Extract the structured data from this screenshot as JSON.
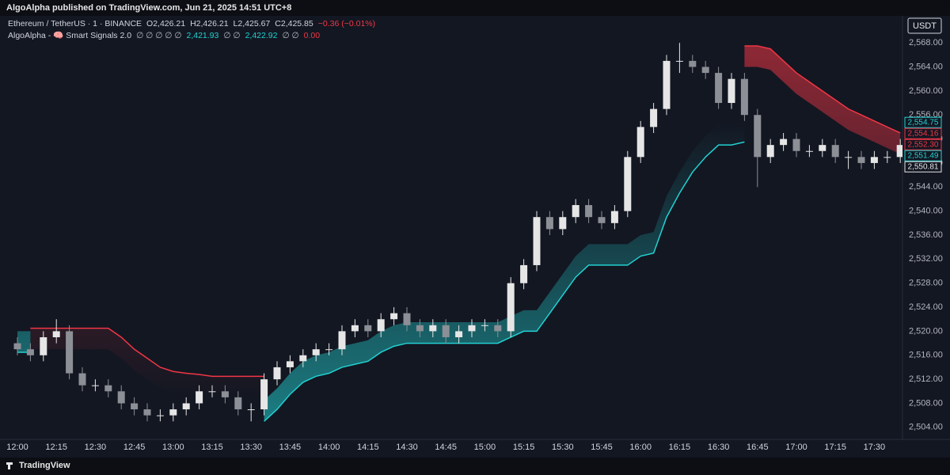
{
  "header": {
    "publisher": "AlgoAlpha published on TradingView.com, Jun 21, 2025 14:51 UTC+8",
    "brand": "TradingView"
  },
  "legend": {
    "symbol": "Ethereum / TetherUS · 1 · BINANCE",
    "ohlc": [
      "O2,426.21",
      "H2,426.21",
      "L2,425.67",
      "C2,425.85",
      "−0.36 (−0.01%)"
    ],
    "indicator": "AlgoAlpha - 🧠 Smart Signals 2.0",
    "indicator_values": [
      {
        "text": "∅ ∅ ∅ ∅ ∅",
        "color": "#b2b5be"
      },
      {
        "text": "2,421.93",
        "color": "#22d1d1"
      },
      {
        "text": "∅ ∅",
        "color": "#b2b5be"
      },
      {
        "text": "2,422.92",
        "color": "#22d1d1"
      },
      {
        "text": "∅ ∅",
        "color": "#b2b5be"
      },
      {
        "text": "0.00",
        "color": "#f23645"
      }
    ]
  },
  "chart_data": {
    "type": "candlestick",
    "currency": "USDT",
    "x": [
      "12:00",
      "12:05",
      "12:10",
      "12:15",
      "12:20",
      "12:25",
      "12:30",
      "12:35",
      "12:40",
      "12:45",
      "12:50",
      "12:55",
      "13:00",
      "13:05",
      "13:10",
      "13:15",
      "13:20",
      "13:25",
      "13:30",
      "13:35",
      "13:40",
      "13:45",
      "13:50",
      "13:55",
      "14:00",
      "14:05",
      "14:10",
      "14:15",
      "14:20",
      "14:25",
      "14:30",
      "14:35",
      "14:40",
      "14:45",
      "14:50",
      "14:55",
      "15:00",
      "15:05",
      "15:10",
      "15:15",
      "15:20",
      "15:25",
      "15:30",
      "15:35",
      "15:40",
      "15:45",
      "15:50",
      "15:55",
      "16:00",
      "16:05",
      "16:10",
      "16:15",
      "16:20",
      "16:25",
      "16:30",
      "16:35",
      "16:40",
      "16:45",
      "16:50",
      "16:55",
      "17:00",
      "17:05",
      "17:10",
      "17:15",
      "17:20",
      "17:25",
      "17:30",
      "17:35",
      "17:40"
    ],
    "open": [
      2518,
      2517,
      2516,
      2519,
      2520,
      2513,
      2511,
      2511,
      2510,
      2508,
      2507,
      2506,
      2506,
      2507,
      2508,
      2510,
      2510,
      2509,
      2507,
      2507,
      2512,
      2514,
      2515,
      2516,
      2517,
      2517,
      2520,
      2521,
      2520,
      2522,
      2523,
      2521,
      2520,
      2521,
      2519,
      2520,
      2521,
      2521,
      2520,
      2528,
      2531,
      2539,
      2537,
      2539,
      2541,
      2539,
      2538,
      2540,
      2549,
      2554,
      2557,
      2565,
      2565,
      2564,
      2563,
      2558,
      2562,
      2556,
      2549,
      2551,
      2552,
      2550,
      2550,
      2551,
      2549,
      2549,
      2548,
      2549,
      2549
    ],
    "high": [
      2519,
      2518,
      2520,
      2522,
      2521,
      2514,
      2512,
      2512,
      2511,
      2509,
      2508,
      2507,
      2508,
      2509,
      2511,
      2511,
      2511,
      2510,
      2508,
      2513,
      2515,
      2516,
      2517,
      2518,
      2518,
      2521,
      2522,
      2522,
      2523,
      2524,
      2524,
      2522,
      2522,
      2522,
      2521,
      2522,
      2522,
      2522,
      2529,
      2532,
      2540,
      2540,
      2540,
      2542,
      2542,
      2540,
      2541,
      2550,
      2555,
      2558,
      2566,
      2568,
      2566,
      2565,
      2564,
      2563,
      2563,
      2557,
      2552,
      2553,
      2553,
      2551,
      2552,
      2552,
      2550,
      2550,
      2550,
      2550,
      2552
    ],
    "low": [
      2516,
      2515,
      2515,
      2518,
      2512,
      2510,
      2510,
      2509,
      2507,
      2506,
      2505,
      2505,
      2505,
      2506,
      2507,
      2509,
      2508,
      2506,
      2505,
      2506,
      2511,
      2513,
      2514,
      2515,
      2516,
      2516,
      2519,
      2519,
      2519,
      2521,
      2520,
      2519,
      2519,
      2518,
      2518,
      2519,
      2520,
      2519,
      2519,
      2527,
      2530,
      2536,
      2536,
      2538,
      2538,
      2537,
      2537,
      2539,
      2548,
      2553,
      2556,
      2563,
      2563,
      2562,
      2557,
      2557,
      2555,
      2544,
      2548,
      2550,
      2549,
      2549,
      2549,
      2548,
      2547,
      2547,
      2547,
      2548,
      2548
    ],
    "close": [
      2517,
      2516,
      2519,
      2520,
      2513,
      2511,
      2511,
      2510,
      2508,
      2507,
      2506,
      2506,
      2507,
      2508,
      2510,
      2510,
      2509,
      2507,
      2507,
      2512,
      2514,
      2515,
      2516,
      2517,
      2517,
      2520,
      2521,
      2520,
      2522,
      2523,
      2521,
      2520,
      2521,
      2519,
      2520,
      2521,
      2521,
      2520,
      2528,
      2531,
      2539,
      2537,
      2539,
      2541,
      2539,
      2538,
      2540,
      2549,
      2554,
      2557,
      2565,
      2565,
      2564,
      2563,
      2558,
      2562,
      2556,
      2549,
      2551,
      2552,
      2550,
      2550,
      2551,
      2549,
      2549,
      2548,
      2549,
      2549,
      2551
    ],
    "up_color": "#e6e6e6",
    "down_color": "#8c8f96",
    "bands": [
      {
        "color": "#f23645",
        "values": [
          null,
          2520.5,
          2520.5,
          2520.5,
          2520.5,
          2520.5,
          2520.5,
          2520.5,
          2519,
          2517,
          2515.5,
          2514,
          2513.3,
          2513,
          2512.8,
          2512.5,
          2512.5,
          2512.5,
          2512.5,
          2512.5,
          null,
          null,
          null,
          null,
          null,
          null,
          null,
          null,
          null,
          null,
          null,
          null,
          null,
          null,
          null,
          null,
          null,
          null,
          null,
          null,
          null,
          null,
          null,
          null,
          null,
          null,
          null,
          null,
          null,
          null,
          null,
          null,
          null,
          null,
          null,
          null,
          2567.5,
          2567.5,
          2567,
          2565,
          2563,
          2561.5,
          2560,
          2558.5,
          2557,
          2556,
          2555,
          2554,
          2553
        ]
      },
      {
        "color": "#22d1d1",
        "values": [
          2516.5,
          2516.5,
          null,
          null,
          null,
          null,
          null,
          null,
          null,
          null,
          null,
          null,
          null,
          null,
          null,
          null,
          null,
          null,
          null,
          2505,
          2507,
          2509.5,
          2511.5,
          2512.5,
          2513,
          2514,
          2514.5,
          2515,
          2516.5,
          2517.5,
          2518,
          2518,
          2518,
          2518,
          2518,
          2518,
          2518,
          2518,
          2519,
          2520,
          2520,
          2523,
          2526,
          2529,
          2531,
          2531,
          2531,
          2531,
          2532.5,
          2533,
          2539,
          2543,
          2546.5,
          2549,
          2551,
          2551,
          2551.5,
          null,
          null,
          null,
          null,
          null,
          null,
          null,
          null,
          null,
          null,
          null,
          null
        ]
      }
    ],
    "xticks": [
      "12:00",
      "12:15",
      "12:30",
      "12:45",
      "13:00",
      "13:15",
      "13:30",
      "13:45",
      "14:00",
      "14:15",
      "14:30",
      "14:45",
      "15:00",
      "15:15",
      "15:30",
      "15:45",
      "16:00",
      "16:15",
      "16:30",
      "16:45",
      "17:00",
      "17:15",
      "17:30"
    ],
    "ylim": [
      2502,
      2572.5
    ],
    "yticks": [
      {
        "value": 2504,
        "label": "2,504.00"
      },
      {
        "value": 2508,
        "label": "2,508.00"
      },
      {
        "value": 2512,
        "label": "2,512.00"
      },
      {
        "value": 2516,
        "label": "2,516.00"
      },
      {
        "value": 2520,
        "label": "2,520.00"
      },
      {
        "value": 2524,
        "label": "2,524.00"
      },
      {
        "value": 2528,
        "label": "2,528.00"
      },
      {
        "value": 2532,
        "label": "2,532.00"
      },
      {
        "value": 2536,
        "label": "2,536.00"
      },
      {
        "value": 2540,
        "label": "2,540.00"
      },
      {
        "value": 2544,
        "label": "2,544.00"
      },
      {
        "value": 2548,
        "label": "2,548.00"
      },
      {
        "value": 2552,
        "label": "2,552.00"
      },
      {
        "value": 2556,
        "label": "2,556.00"
      },
      {
        "value": 2560,
        "label": "2,560.00"
      },
      {
        "value": 2564,
        "label": "2,564.00"
      },
      {
        "value": 2568,
        "label": "2,568.00"
      }
    ],
    "grid": false,
    "price_labels": [
      {
        "value": 2554.75,
        "label": "2,554.75",
        "color": "#22d1d1"
      },
      {
        "value": 2554.16,
        "label": "2,554.16",
        "color": "#f23645"
      },
      {
        "value": 2552.3,
        "label": "2,552.30",
        "color": "#f23645"
      },
      {
        "value": 2551.49,
        "label": "2,551.49",
        "color": "#22d1d1"
      },
      {
        "value": 2550.81,
        "label": "2,550.81",
        "color": "#e6e6e6"
      }
    ]
  }
}
